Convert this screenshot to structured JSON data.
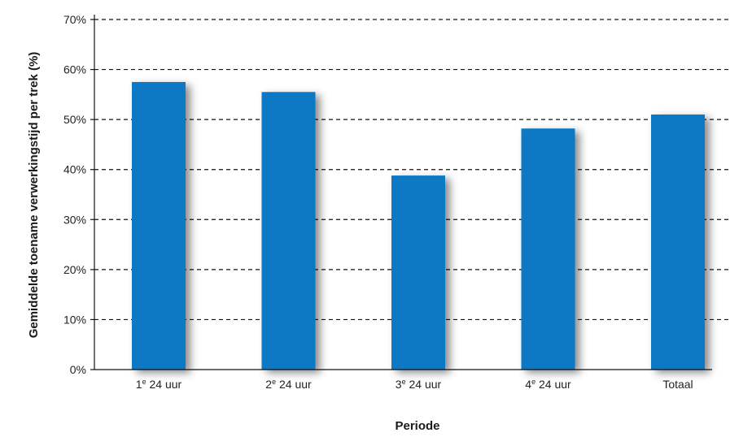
{
  "chart_data": {
    "type": "bar",
    "categories": [
      {
        "main": "1",
        "sup": "e",
        "rest": " 24 uur"
      },
      {
        "main": "2",
        "sup": "e",
        "rest": " 24 uur"
      },
      {
        "main": "3",
        "sup": "e",
        "rest": " 24 uur"
      },
      {
        "main": "4",
        "sup": "e",
        "rest": " 24 uur"
      },
      {
        "main": "Totaal",
        "sup": "",
        "rest": ""
      }
    ],
    "values": [
      57.5,
      55.5,
      38.8,
      48.2,
      51.0
    ],
    "xlabel": "Periode",
    "ylabel": "Gemiddelde toename verwerkingstijd per trek (%)",
    "ylim": [
      0,
      70
    ],
    "yticks": [
      "0%",
      "10%",
      "20%",
      "30%",
      "40%",
      "50%",
      "60%",
      "70%"
    ],
    "ytick_values": [
      0,
      10,
      20,
      30,
      40,
      50,
      60,
      70
    ],
    "grid": true,
    "bar_color": "#0a78c4"
  }
}
